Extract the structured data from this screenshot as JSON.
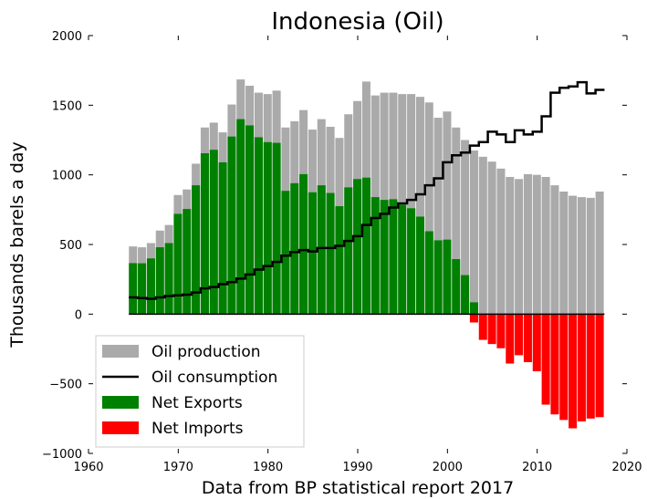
{
  "chart_data": {
    "type": "bar",
    "title": "Indonesia (Oil)",
    "xlabel": "Data from BP statistical report 2017",
    "ylabel": "Thousands barels a day",
    "xlim": [
      1960,
      2020
    ],
    "ylim": [
      -1000,
      2000
    ],
    "xticks": [
      1960,
      1970,
      1980,
      1990,
      2000,
      2010,
      2020
    ],
    "yticks": [
      -1000,
      -500,
      0,
      500,
      1000,
      1500,
      2000
    ],
    "legend_position": "bottom-left",
    "grid": false,
    "colors": {
      "production": "#aaaaaa",
      "consumption": "#000000",
      "exports": "#008000",
      "imports": "#ff0000"
    },
    "years": [
      1965,
      1966,
      1967,
      1968,
      1969,
      1970,
      1971,
      1972,
      1973,
      1974,
      1975,
      1976,
      1977,
      1978,
      1979,
      1980,
      1981,
      1982,
      1983,
      1984,
      1985,
      1986,
      1987,
      1988,
      1989,
      1990,
      1991,
      1992,
      1993,
      1994,
      1995,
      1996,
      1997,
      1998,
      1999,
      2000,
      2001,
      2002,
      2003,
      2004,
      2005,
      2006,
      2007,
      2008,
      2009,
      2010,
      2011,
      2012,
      2013,
      2014,
      2015,
      2016,
      2017
    ],
    "series": [
      {
        "name": "Oil production",
        "kind": "bar",
        "values": [
          486,
          480,
          510,
          600,
          640,
          855,
          895,
          1080,
          1340,
          1375,
          1305,
          1505,
          1685,
          1640,
          1590,
          1580,
          1605,
          1340,
          1385,
          1465,
          1325,
          1400,
          1345,
          1265,
          1435,
          1530,
          1670,
          1570,
          1590,
          1590,
          1580,
          1580,
          1560,
          1520,
          1410,
          1455,
          1340,
          1250,
          1175,
          1130,
          1095,
          1045,
          985,
          970,
          1005,
          1000,
          985,
          925,
          880,
          850,
          840,
          835,
          880
        ]
      },
      {
        "name": "Oil consumption",
        "kind": "step",
        "values": [
          120,
          115,
          110,
          120,
          130,
          135,
          140,
          155,
          185,
          195,
          215,
          230,
          255,
          285,
          320,
          345,
          375,
          420,
          445,
          460,
          450,
          475,
          475,
          490,
          525,
          560,
          640,
          690,
          720,
          765,
          795,
          820,
          860,
          925,
          975,
          1090,
          1140,
          1160,
          1210,
          1235,
          1310,
          1290,
          1235,
          1320,
          1290,
          1310,
          1420,
          1590,
          1625,
          1635,
          1665,
          1585,
          1610
        ]
      },
      {
        "name": "Net Exports",
        "kind": "bar",
        "values": [
          366,
          365,
          400,
          480,
          510,
          720,
          755,
          925,
          1155,
          1180,
          1090,
          1275,
          1400,
          1355,
          1270,
          1235,
          1230,
          885,
          940,
          1005,
          875,
          925,
          870,
          775,
          910,
          970,
          980,
          840,
          820,
          825,
          785,
          760,
          700,
          595,
          530,
          535,
          395,
          280,
          85,
          0,
          0,
          0,
          0,
          0,
          0,
          0,
          0,
          0,
          0,
          0,
          0,
          0,
          0
        ]
      },
      {
        "name": "Net Imports",
        "kind": "bar",
        "values": [
          0,
          0,
          0,
          0,
          0,
          0,
          0,
          0,
          0,
          0,
          0,
          0,
          0,
          0,
          0,
          0,
          0,
          0,
          0,
          0,
          0,
          0,
          0,
          0,
          0,
          0,
          0,
          0,
          0,
          0,
          0,
          0,
          0,
          0,
          0,
          0,
          0,
          0,
          -60,
          -185,
          -215,
          -245,
          -355,
          -295,
          -345,
          -410,
          -650,
          -720,
          -760,
          -820,
          -770,
          -750,
          -740
        ]
      }
    ]
  }
}
